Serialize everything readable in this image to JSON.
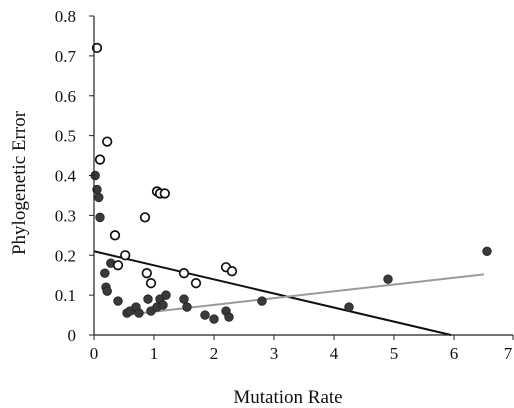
{
  "chart_data": {
    "type": "scatter",
    "xlabel": "Mutation Rate",
    "ylabel": "Phylogenetic Error",
    "xlim": [
      0,
      7
    ],
    "ylim": [
      0,
      0.8
    ],
    "xticks": [
      "0",
      "1",
      "2",
      "3",
      "4",
      "5",
      "6",
      "7"
    ],
    "yticks": [
      "0",
      "0.1",
      "0.2",
      "0.3",
      "0.4",
      "0.5",
      "0.6",
      "0.7",
      "0.8"
    ],
    "grid": false,
    "series": [
      {
        "marker": "filled-circle",
        "color": "#3a3a3a",
        "points": [
          {
            "x": 0.02,
            "y": 0.4
          },
          {
            "x": 0.05,
            "y": 0.365
          },
          {
            "x": 0.08,
            "y": 0.345
          },
          {
            "x": 0.1,
            "y": 0.295
          },
          {
            "x": 0.18,
            "y": 0.155
          },
          {
            "x": 0.2,
            "y": 0.12
          },
          {
            "x": 0.22,
            "y": 0.11
          },
          {
            "x": 0.28,
            "y": 0.18
          },
          {
            "x": 0.4,
            "y": 0.085
          },
          {
            "x": 0.55,
            "y": 0.055
          },
          {
            "x": 0.6,
            "y": 0.06
          },
          {
            "x": 0.7,
            "y": 0.07
          },
          {
            "x": 0.75,
            "y": 0.055
          },
          {
            "x": 0.9,
            "y": 0.09
          },
          {
            "x": 0.95,
            "y": 0.06
          },
          {
            "x": 1.05,
            "y": 0.07
          },
          {
            "x": 1.1,
            "y": 0.09
          },
          {
            "x": 1.15,
            "y": 0.075
          },
          {
            "x": 1.2,
            "y": 0.1
          },
          {
            "x": 1.5,
            "y": 0.09
          },
          {
            "x": 1.55,
            "y": 0.07
          },
          {
            "x": 1.85,
            "y": 0.05
          },
          {
            "x": 2.0,
            "y": 0.04
          },
          {
            "x": 2.2,
            "y": 0.06
          },
          {
            "x": 2.25,
            "y": 0.045
          },
          {
            "x": 2.8,
            "y": 0.085
          },
          {
            "x": 4.25,
            "y": 0.07
          },
          {
            "x": 4.9,
            "y": 0.14
          },
          {
            "x": 6.55,
            "y": 0.21
          }
        ]
      },
      {
        "marker": "open-circle",
        "color": "#111111",
        "points": [
          {
            "x": 0.05,
            "y": 0.72
          },
          {
            "x": 0.1,
            "y": 0.44
          },
          {
            "x": 0.22,
            "y": 0.485
          },
          {
            "x": 0.35,
            "y": 0.25
          },
          {
            "x": 0.4,
            "y": 0.175
          },
          {
            "x": 0.52,
            "y": 0.2
          },
          {
            "x": 0.85,
            "y": 0.295
          },
          {
            "x": 0.88,
            "y": 0.155
          },
          {
            "x": 0.95,
            "y": 0.13
          },
          {
            "x": 1.05,
            "y": 0.36
          },
          {
            "x": 1.1,
            "y": 0.355
          },
          {
            "x": 1.18,
            "y": 0.355
          },
          {
            "x": 1.5,
            "y": 0.155
          },
          {
            "x": 1.7,
            "y": 0.13
          },
          {
            "x": 2.2,
            "y": 0.17
          },
          {
            "x": 2.3,
            "y": 0.16
          }
        ]
      }
    ],
    "trendlines": [
      {
        "from": [
          0,
          0.21
        ],
        "to": [
          5.95,
          0.0
        ],
        "color": "#111111"
      },
      {
        "from": [
          0.5,
          0.05
        ],
        "to": [
          6.5,
          0.152
        ],
        "color": "#9a9a9a"
      }
    ]
  }
}
